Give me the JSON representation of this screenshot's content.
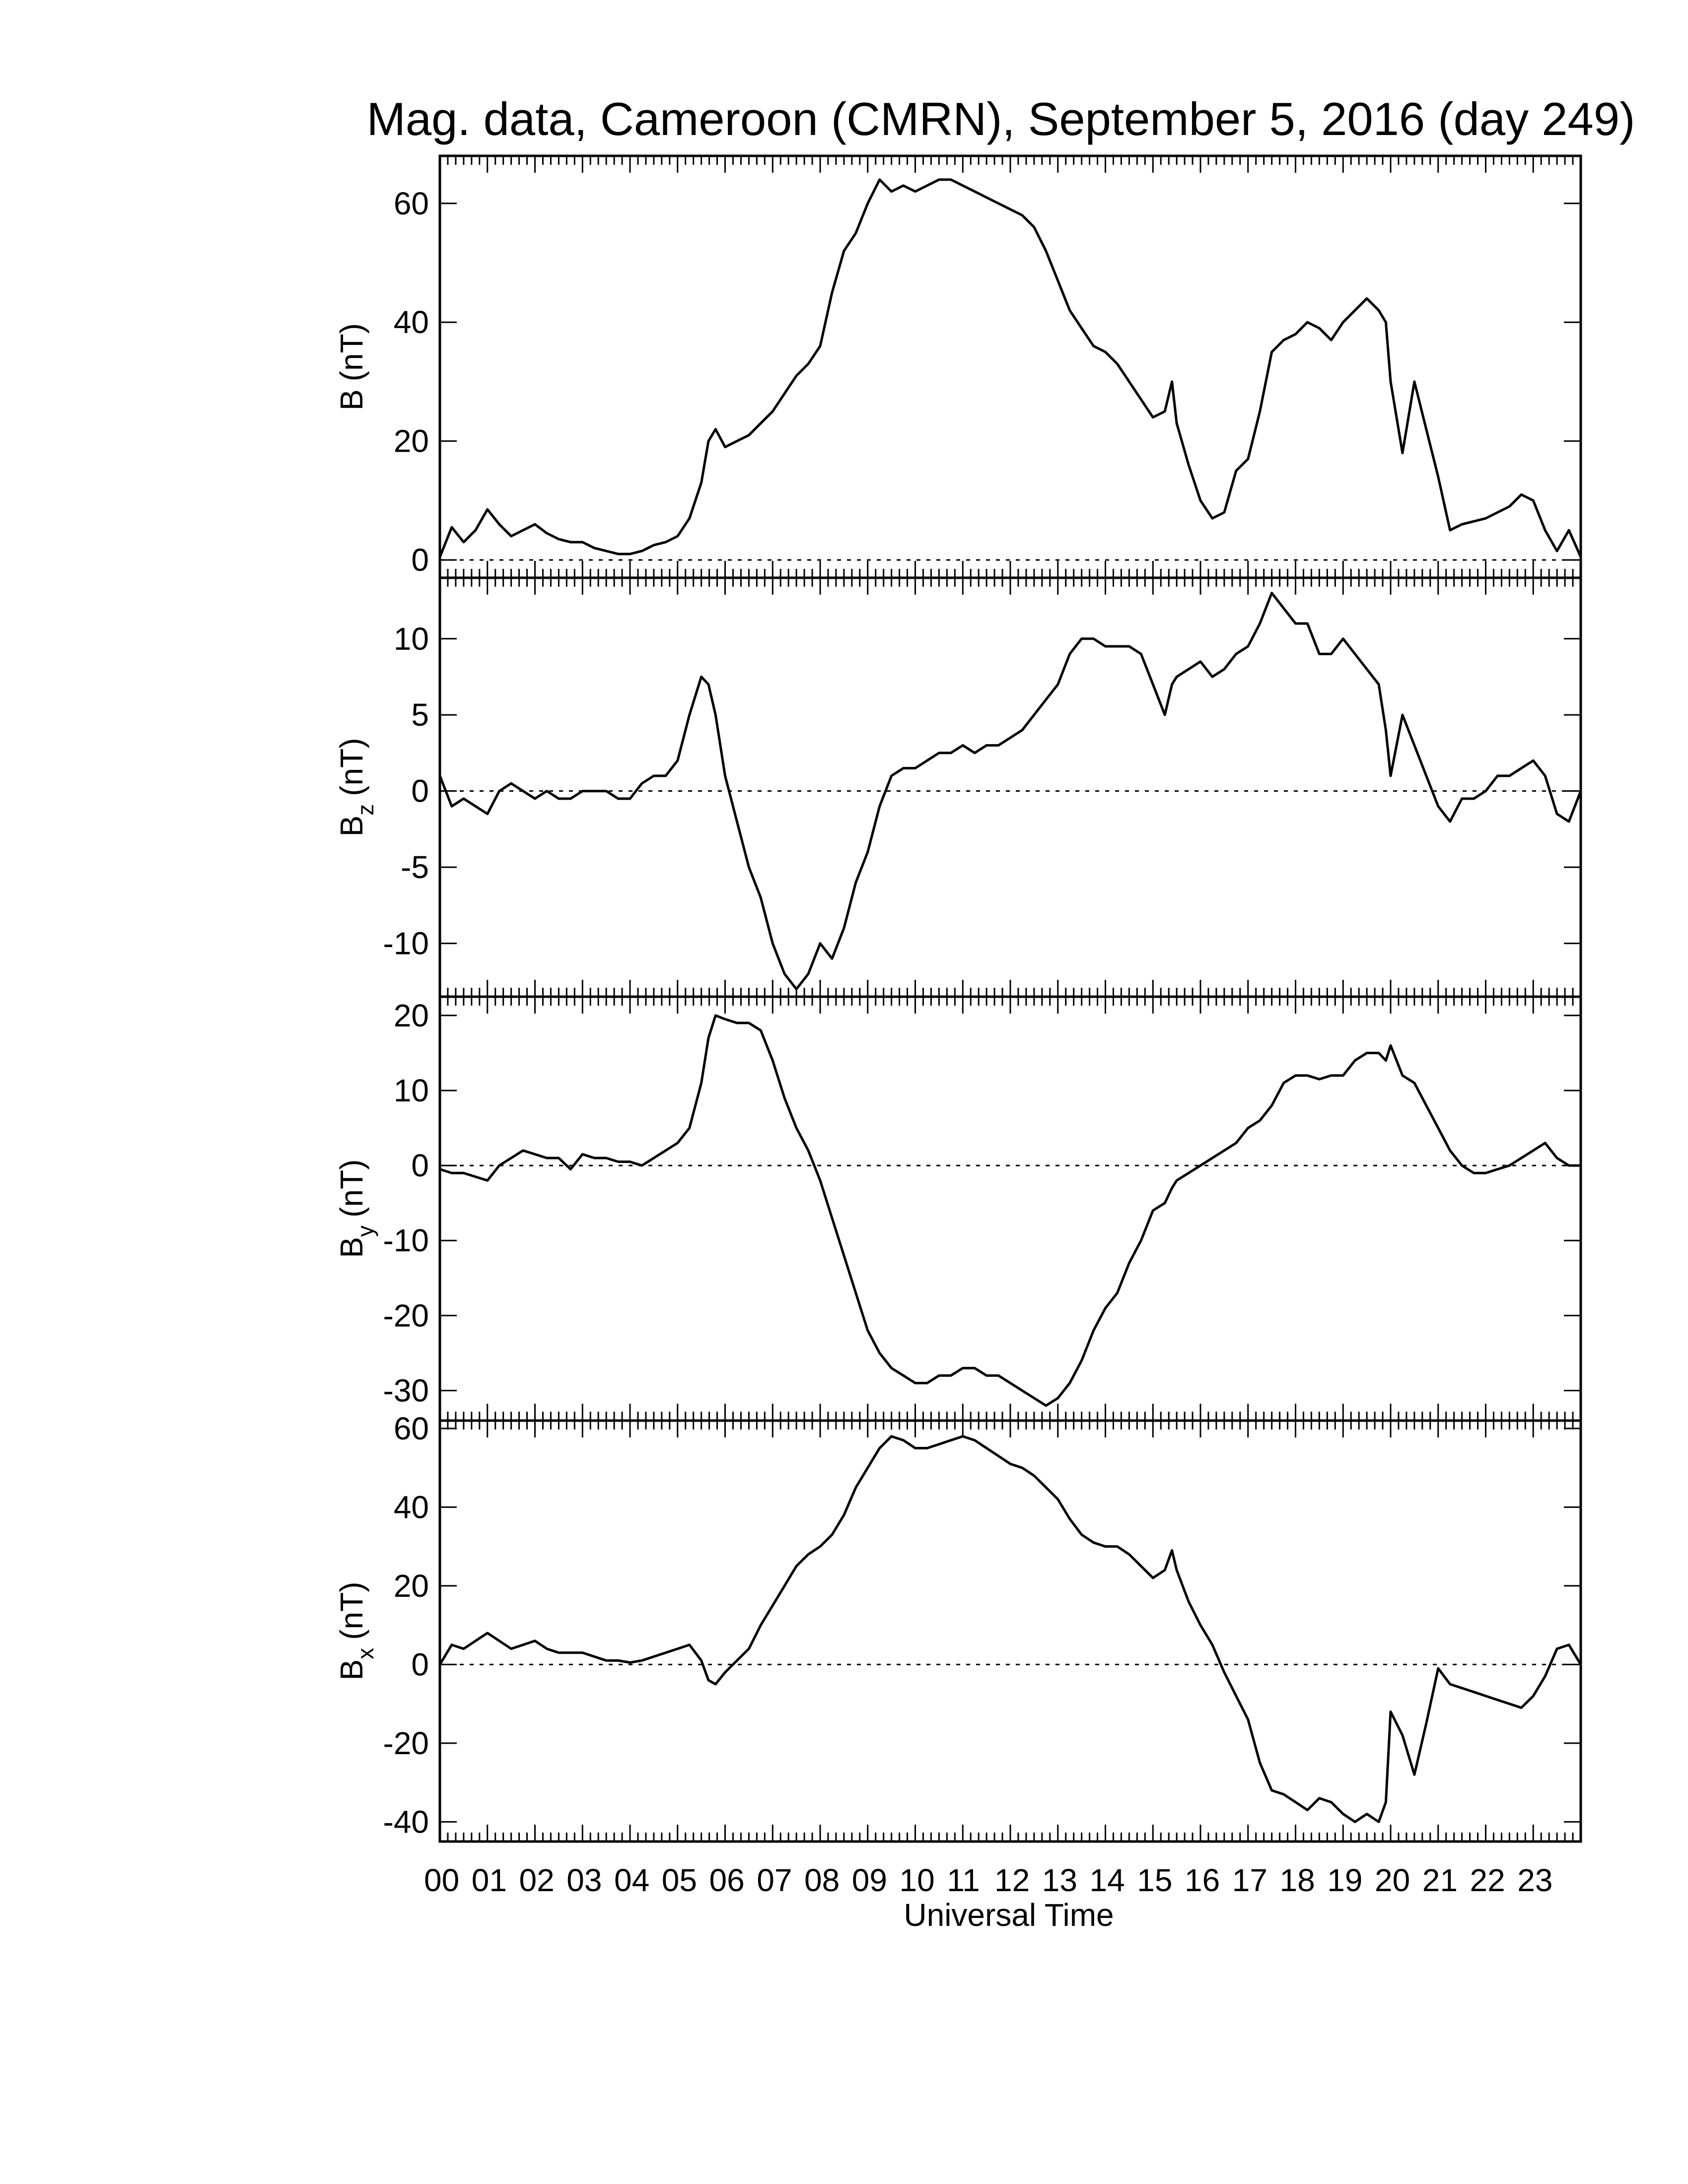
{
  "chart_data": {
    "type": "line",
    "title": "Mag. data, Cameroon (CMRN), September 5, 2016 (day 249)",
    "xlabel": "Universal Time",
    "x_tick_labels": [
      "00",
      "01",
      "02",
      "03",
      "04",
      "05",
      "06",
      "07",
      "08",
      "09",
      "10",
      "11",
      "12",
      "13",
      "14",
      "15",
      "16",
      "17",
      "18",
      "19",
      "20",
      "21",
      "22",
      "23"
    ],
    "xlim": [
      0,
      24
    ],
    "zero_line": "dotted",
    "line_color": "#000000",
    "panels": [
      {
        "id": "b",
        "ylabel_main": "B",
        "ylabel_sub": "",
        "ylabel_unit": "(nT)",
        "ylim": [
          -3,
          68
        ],
        "yticks": [
          0,
          20,
          40,
          60
        ],
        "ytick_labels": [
          "0",
          "20",
          "40",
          "60"
        ],
        "x": [
          0,
          0.25,
          0.5,
          0.75,
          1,
          1.25,
          1.5,
          1.75,
          2,
          2.25,
          2.5,
          2.75,
          3,
          3.25,
          3.5,
          3.75,
          4,
          4.25,
          4.5,
          4.75,
          5,
          5.25,
          5.5,
          5.65,
          5.8,
          6,
          6.25,
          6.5,
          6.75,
          7,
          7.25,
          7.5,
          7.75,
          8,
          8.25,
          8.5,
          8.75,
          9,
          9.25,
          9.5,
          9.75,
          10,
          10.25,
          10.5,
          10.75,
          11,
          11.25,
          11.5,
          11.75,
          12,
          12.25,
          12.5,
          12.75,
          13,
          13.25,
          13.5,
          13.75,
          14,
          14.25,
          14.5,
          14.75,
          15,
          15.25,
          15.4,
          15.5,
          15.75,
          16,
          16.25,
          16.5,
          16.75,
          17,
          17.25,
          17.5,
          17.75,
          18,
          18.25,
          18.5,
          18.75,
          19,
          19.25,
          19.5,
          19.75,
          19.9,
          20,
          20.25,
          20.5,
          20.75,
          21,
          21.25,
          21.5,
          21.75,
          22,
          22.25,
          22.5,
          22.75,
          23,
          23.25,
          23.5,
          23.75,
          24
        ],
        "y": [
          0.5,
          5.5,
          3,
          5,
          8.5,
          6,
          4,
          5,
          6,
          4.5,
          3.5,
          3,
          3,
          2,
          1.5,
          1,
          1,
          1.5,
          2.5,
          3,
          4,
          7,
          13,
          20,
          22,
          19,
          20,
          21,
          23,
          25,
          28,
          31,
          33,
          36,
          45,
          52,
          55,
          60,
          64,
          62,
          63,
          62,
          63,
          64,
          64,
          63,
          62,
          61,
          60,
          59,
          58,
          56,
          52,
          47,
          42,
          39,
          36,
          35,
          33,
          30,
          27,
          24,
          25,
          30,
          23,
          16,
          10,
          7,
          8,
          15,
          17,
          25,
          35,
          37,
          38,
          40,
          39,
          37,
          40,
          42,
          44,
          42,
          40,
          30,
          18,
          30,
          22,
          14,
          5,
          6,
          6.5,
          7,
          8,
          9,
          11,
          10,
          5,
          1.5,
          5,
          0.5
        ],
        "aspect": "x"
      },
      {
        "id": "bz",
        "ylabel_main": "B",
        "ylabel_sub": "z",
        "ylabel_unit": "(nT)",
        "ylim": [
          -13.5,
          14
        ],
        "yticks": [
          -10,
          -5,
          0,
          5,
          10
        ],
        "ytick_labels": [
          "-10",
          "-5",
          "0",
          "5",
          "10"
        ],
        "x": [
          0,
          0.25,
          0.5,
          0.75,
          1,
          1.25,
          1.5,
          1.75,
          2,
          2.25,
          2.5,
          2.75,
          3,
          3.25,
          3.5,
          3.75,
          4,
          4.25,
          4.5,
          4.75,
          5,
          5.25,
          5.5,
          5.65,
          5.8,
          6,
          6.25,
          6.5,
          6.75,
          7,
          7.25,
          7.5,
          7.75,
          8,
          8.25,
          8.5,
          8.75,
          9,
          9.25,
          9.5,
          9.75,
          10,
          10.25,
          10.5,
          10.75,
          11,
          11.25,
          11.5,
          11.75,
          12,
          12.25,
          12.5,
          12.75,
          13,
          13.25,
          13.5,
          13.75,
          14,
          14.25,
          14.5,
          14.75,
          15,
          15.25,
          15.4,
          15.5,
          15.75,
          16,
          16.25,
          16.5,
          16.75,
          17,
          17.25,
          17.5,
          17.75,
          18,
          18.25,
          18.5,
          18.75,
          19,
          19.25,
          19.5,
          19.75,
          19.9,
          20,
          20.25,
          20.5,
          20.75,
          21,
          21.25,
          21.5,
          21.75,
          22,
          22.25,
          22.5,
          22.75,
          23,
          23.25,
          23.5,
          23.75,
          24
        ],
        "y": [
          1,
          -1,
          -0.5,
          -1,
          -1.5,
          0,
          0.5,
          0,
          -0.5,
          0,
          -0.5,
          -0.5,
          0,
          0,
          0,
          -0.5,
          -0.5,
          0.5,
          1,
          1,
          2,
          5,
          7.5,
          7,
          5,
          1,
          -2,
          -5,
          -7,
          -10,
          -12,
          -13,
          -12,
          -10,
          -11,
          -9,
          -6,
          -4,
          -1,
          1,
          1.5,
          1.5,
          2,
          2.5,
          2.5,
          3,
          2.5,
          3,
          3,
          3.5,
          4,
          5,
          6,
          7,
          9,
          10,
          10,
          9.5,
          9.5,
          9.5,
          9,
          7,
          5,
          7,
          7.5,
          8,
          8.5,
          7.5,
          8,
          9,
          9.5,
          11,
          13,
          12,
          11,
          11,
          9,
          9,
          10,
          9,
          8,
          7,
          4,
          1,
          5,
          3,
          1,
          -1,
          -2,
          -0.5,
          -0.5,
          0,
          1,
          1,
          1.5,
          2,
          1,
          -1.5,
          -2,
          0
        ],
        "aspect": "x"
      },
      {
        "id": "by",
        "ylabel_main": "B",
        "ylabel_sub": "y",
        "ylabel_unit": "(nT)",
        "ylim": [
          -34,
          22.5
        ],
        "yticks": [
          -30,
          -20,
          -10,
          0,
          10,
          20
        ],
        "ytick_labels": [
          "-30",
          "-20",
          "-10",
          "0",
          "10",
          "20"
        ],
        "x": [
          0,
          0.25,
          0.5,
          0.75,
          1,
          1.25,
          1.5,
          1.75,
          2,
          2.25,
          2.5,
          2.75,
          3,
          3.25,
          3.5,
          3.75,
          4,
          4.25,
          4.5,
          4.75,
          5,
          5.25,
          5.5,
          5.65,
          5.8,
          6,
          6.25,
          6.5,
          6.75,
          7,
          7.25,
          7.5,
          7.75,
          8,
          8.25,
          8.5,
          8.75,
          9,
          9.25,
          9.5,
          9.75,
          10,
          10.25,
          10.5,
          10.75,
          11,
          11.25,
          11.5,
          11.75,
          12,
          12.25,
          12.5,
          12.75,
          13,
          13.25,
          13.5,
          13.75,
          14,
          14.25,
          14.5,
          14.75,
          15,
          15.25,
          15.4,
          15.5,
          15.75,
          16,
          16.25,
          16.5,
          16.75,
          17,
          17.25,
          17.5,
          17.75,
          18,
          18.25,
          18.5,
          18.75,
          19,
          19.25,
          19.5,
          19.75,
          19.9,
          20,
          20.25,
          20.5,
          20.75,
          21,
          21.25,
          21.5,
          21.75,
          22,
          22.25,
          22.5,
          22.75,
          23,
          23.25,
          23.5,
          23.75,
          24
        ],
        "y": [
          -0.5,
          -1,
          -1,
          -1.5,
          -2,
          0,
          1,
          2,
          1.5,
          1,
          1,
          -0.5,
          1.5,
          1,
          1,
          0.5,
          0.5,
          0,
          1,
          2,
          3,
          5,
          11,
          17,
          20,
          19.5,
          19,
          19,
          18,
          14,
          9,
          5,
          2,
          -2,
          -7,
          -12,
          -17,
          -22,
          -25,
          -27,
          -28,
          -29,
          -29,
          -28,
          -28,
          -27,
          -27,
          -28,
          -28,
          -29,
          -30,
          -31,
          -32,
          -31,
          -29,
          -26,
          -22,
          -19,
          -17,
          -13,
          -10,
          -6,
          -5,
          -3,
          -2,
          -1,
          0,
          1,
          2,
          3,
          5,
          6,
          8,
          11,
          12,
          12,
          11.5,
          12,
          12,
          14,
          15,
          15,
          14,
          16,
          12,
          11,
          8,
          5,
          2,
          0,
          -1,
          -1,
          -0.5,
          0,
          1,
          2,
          3,
          1,
          0,
          0
        ],
        "aspect": "x"
      },
      {
        "id": "bx",
        "ylabel_main": "B",
        "ylabel_sub": "x",
        "ylabel_unit": "(nT)",
        "ylim": [
          -45,
          62
        ],
        "yticks": [
          -40,
          -20,
          0,
          20,
          40,
          60
        ],
        "ytick_labels": [
          "-40",
          "-20",
          "0",
          "20",
          "40",
          "60"
        ],
        "x": [
          0,
          0.25,
          0.5,
          0.75,
          1,
          1.25,
          1.5,
          1.75,
          2,
          2.25,
          2.5,
          2.75,
          3,
          3.25,
          3.5,
          3.75,
          4,
          4.25,
          4.5,
          4.75,
          5,
          5.25,
          5.5,
          5.65,
          5.8,
          6,
          6.25,
          6.5,
          6.75,
          7,
          7.25,
          7.5,
          7.75,
          8,
          8.25,
          8.5,
          8.75,
          9,
          9.25,
          9.5,
          9.75,
          10,
          10.25,
          10.5,
          10.75,
          11,
          11.25,
          11.5,
          11.75,
          12,
          12.25,
          12.5,
          12.75,
          13,
          13.25,
          13.5,
          13.75,
          14,
          14.25,
          14.5,
          14.75,
          15,
          15.25,
          15.4,
          15.5,
          15.75,
          16,
          16.25,
          16.5,
          16.75,
          17,
          17.25,
          17.5,
          17.75,
          18,
          18.25,
          18.5,
          18.75,
          19,
          19.25,
          19.5,
          19.75,
          19.9,
          20,
          20.25,
          20.5,
          20.75,
          21,
          21.25,
          21.5,
          21.75,
          22,
          22.25,
          22.5,
          22.75,
          23,
          23.25,
          23.5,
          23.75,
          24
        ],
        "y": [
          0,
          5,
          4,
          6,
          8,
          6,
          4,
          5,
          6,
          4,
          3,
          3,
          3,
          2,
          1,
          1,
          0.5,
          1,
          2,
          3,
          4,
          5,
          1,
          -4,
          -5,
          -2,
          1,
          4,
          10,
          15,
          20,
          25,
          28,
          30,
          33,
          38,
          45,
          50,
          55,
          58,
          57,
          55,
          55,
          56,
          57,
          58,
          57,
          55,
          53,
          51,
          50,
          48,
          45,
          42,
          37,
          33,
          31,
          30,
          30,
          28,
          25,
          22,
          24,
          29,
          24,
          16,
          10,
          5,
          -2,
          -8,
          -14,
          -25,
          -32,
          -33,
          -35,
          -37,
          -34,
          -35,
          -38,
          -40,
          -38,
          -40,
          -35,
          -12,
          -18,
          -28,
          -15,
          -1,
          -5,
          -6,
          -7,
          -8,
          -9,
          -10,
          -11,
          -8,
          -3,
          4,
          5,
          0
        ],
        "aspect": "x"
      }
    ]
  }
}
